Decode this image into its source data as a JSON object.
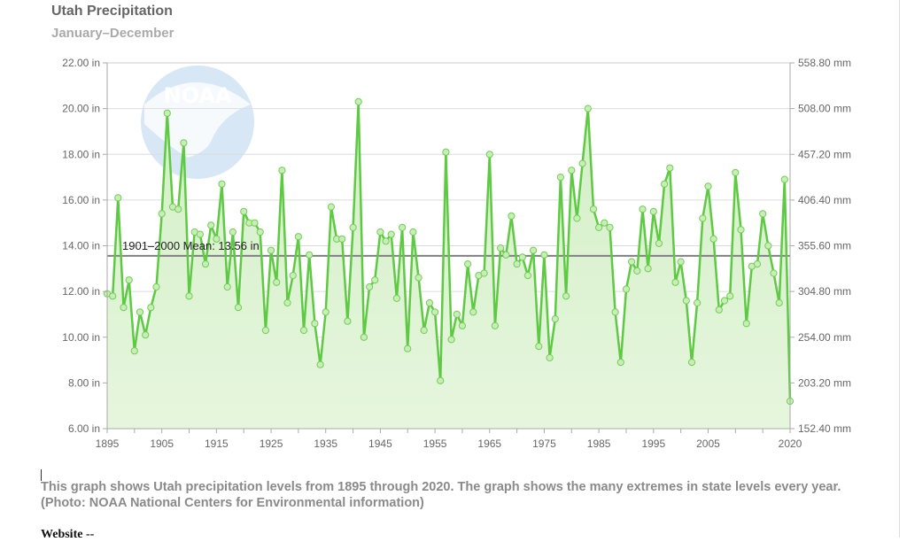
{
  "header": {
    "title": "Utah Precipitation",
    "subtitle": "January–December"
  },
  "logo": {
    "text": "NOAA"
  },
  "caption": "This graph shows Utah precipitation levels from 1895 through 2020. The graph shows the many extremes in state levels every year. (Photo: NOAA National Centers for Environmental information)",
  "footer": {
    "website_label": "Website --"
  },
  "colors": {
    "line": "#5ec943",
    "fill_top": "#d5f0c8",
    "mean_line": "#808080",
    "grid": "#dcdcdc"
  },
  "chart_data": {
    "type": "area",
    "title": "Utah Precipitation",
    "subtitle": "January–December",
    "ylim": [
      6,
      22
    ],
    "xlim": [
      1895,
      2020
    ],
    "grid": true,
    "y_ticks": [
      "6.00 in",
      "8.00 in",
      "10.00 in",
      "12.00 in",
      "14.00 in",
      "16.00 in",
      "18.00 in",
      "20.00 in",
      "22.00 in"
    ],
    "y_tick_values": [
      6,
      8,
      10,
      12,
      14,
      16,
      18,
      20,
      22
    ],
    "y2_ticks": [
      "152.40 mm",
      "203.20 mm",
      "254.00 mm",
      "304.80 mm",
      "355.60 mm",
      "406.40 mm",
      "457.20 mm",
      "508.00 mm",
      "558.80 mm"
    ],
    "x_ticks": [
      "1895",
      "1905",
      "1915",
      "1925",
      "1935",
      "1945",
      "1955",
      "1965",
      "1975",
      "1985",
      "1995",
      "2005",
      "2020"
    ],
    "x_tick_values": [
      1895,
      1905,
      1915,
      1925,
      1935,
      1945,
      1955,
      1965,
      1975,
      1985,
      1995,
      2005,
      2020
    ],
    "mean": {
      "label": "1901–2000 Mean: 13.56 in",
      "value": 13.56
    },
    "x": [
      1895,
      1896,
      1897,
      1898,
      1899,
      1900,
      1901,
      1902,
      1903,
      1904,
      1905,
      1906,
      1907,
      1908,
      1909,
      1910,
      1911,
      1912,
      1913,
      1914,
      1915,
      1916,
      1917,
      1918,
      1919,
      1920,
      1921,
      1922,
      1923,
      1924,
      1925,
      1926,
      1927,
      1928,
      1929,
      1930,
      1931,
      1932,
      1933,
      1934,
      1935,
      1936,
      1937,
      1938,
      1939,
      1940,
      1941,
      1942,
      1943,
      1944,
      1945,
      1946,
      1947,
      1948,
      1949,
      1950,
      1951,
      1952,
      1953,
      1954,
      1955,
      1956,
      1957,
      1958,
      1959,
      1960,
      1961,
      1962,
      1963,
      1964,
      1965,
      1966,
      1967,
      1968,
      1969,
      1970,
      1971,
      1972,
      1973,
      1974,
      1975,
      1976,
      1977,
      1978,
      1979,
      1980,
      1981,
      1982,
      1983,
      1984,
      1985,
      1986,
      1987,
      1988,
      1989,
      1990,
      1991,
      1992,
      1993,
      1994,
      1995,
      1996,
      1997,
      1998,
      1999,
      2000,
      2001,
      2002,
      2003,
      2004,
      2005,
      2006,
      2007,
      2008,
      2009,
      2010,
      2011,
      2012,
      2013,
      2014,
      2015,
      2016,
      2017,
      2018,
      2019,
      2020
    ],
    "series": [
      {
        "values": [
          11.9,
          11.8,
          16.1,
          11.3,
          12.5,
          9.4,
          11.1,
          10.1,
          11.3,
          12.2,
          15.4,
          19.8,
          15.7,
          15.6,
          18.5,
          11.8,
          14.6,
          14.5,
          13.2,
          14.9,
          14.3,
          16.7,
          12.2,
          14.6,
          11.3,
          15.5,
          15.0,
          15.0,
          14.6,
          10.3,
          13.8,
          12.4,
          17.3,
          11.5,
          12.7,
          14.4,
          10.3,
          13.6,
          10.6,
          8.8,
          11.1,
          15.7,
          14.3,
          14.3,
          10.7,
          14.8,
          20.3,
          10.0,
          12.2,
          12.5,
          14.6,
          14.2,
          14.5,
          11.7,
          14.8,
          9.5,
          14.6,
          12.6,
          10.3,
          11.5,
          11.1,
          8.1,
          18.1,
          9.9,
          11.0,
          10.5,
          13.2,
          11.1,
          12.7,
          12.8,
          18.0,
          10.5,
          13.9,
          13.6,
          15.3,
          13.2,
          13.5,
          12.7,
          13.8,
          9.6,
          13.6,
          9.1,
          10.8,
          17.0,
          11.8,
          17.3,
          15.2,
          17.6,
          20.0,
          15.6,
          14.8,
          15.0,
          14.8,
          11.1,
          8.9,
          12.1,
          13.3,
          12.9,
          15.6,
          13.0,
          15.5,
          14.1,
          16.7,
          17.4,
          12.4,
          13.3,
          11.6,
          8.9,
          11.5,
          15.2,
          16.6,
          14.3,
          11.2,
          11.6,
          11.8,
          17.2,
          14.7,
          10.6,
          13.1,
          13.2,
          15.4,
          14.0,
          12.8,
          11.5,
          16.9,
          7.2
        ]
      }
    ]
  }
}
